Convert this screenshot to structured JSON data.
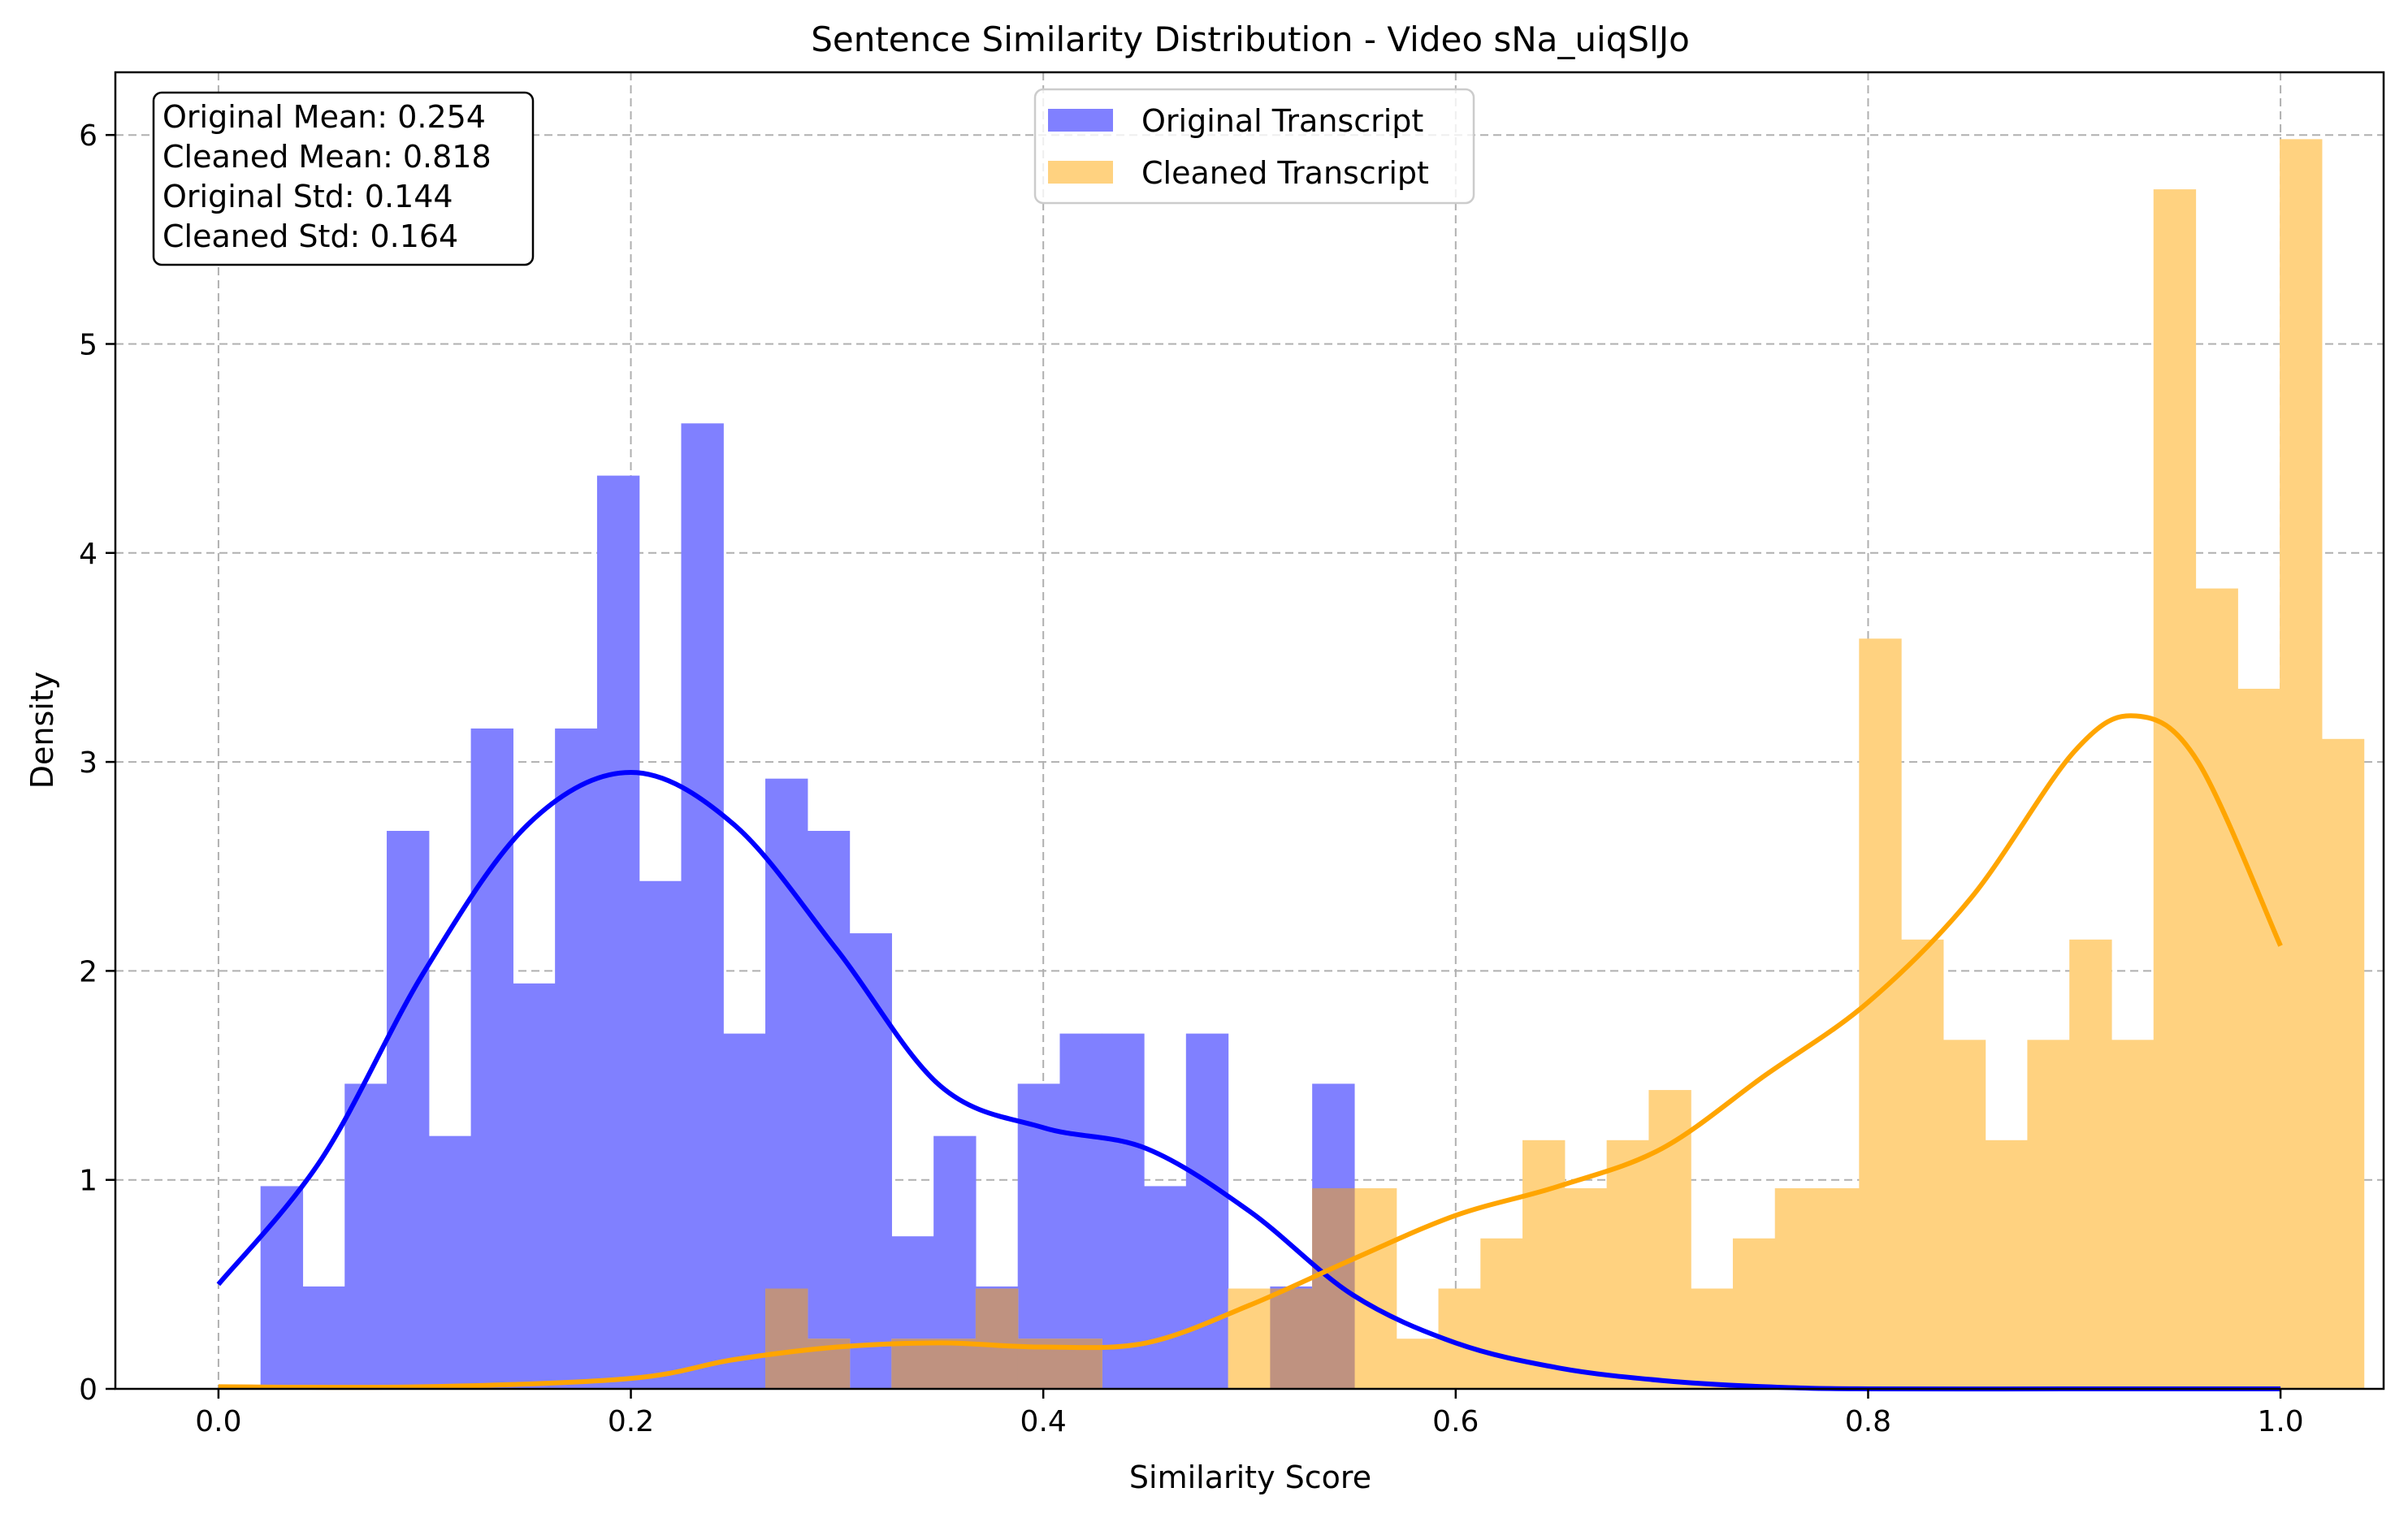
{
  "chart_data": {
    "type": "histogram",
    "title": "Sentence Similarity Distribution - Video sNa_uiqSlJo",
    "xlabel": "Similarity Score",
    "ylabel": "Density",
    "xlim": [
      -0.05,
      1.05
    ],
    "ylim": [
      0,
      6.3
    ],
    "xticks": [
      0.0,
      0.2,
      0.4,
      0.6,
      0.8,
      1.0
    ],
    "xtick_labels": [
      "0.0",
      "0.2",
      "0.4",
      "0.6",
      "0.8",
      "1.0"
    ],
    "yticks": [
      0,
      1,
      2,
      3,
      4,
      5,
      6
    ],
    "ytick_labels": [
      "0",
      "1",
      "2",
      "3",
      "4",
      "5",
      "6"
    ],
    "grid": true,
    "legend_position": "top-center",
    "bins": {
      "start": 0.0,
      "width": 0.0204,
      "original": [
        0,
        0.97,
        0.49,
        1.46,
        2.67,
        1.21,
        3.16,
        1.94,
        3.16,
        4.37,
        2.43,
        4.62,
        1.7,
        2.92,
        2.67,
        2.18,
        0.73,
        1.21,
        0.49,
        1.46,
        1.7,
        1.7,
        0.97,
        1.7,
        0,
        0.49,
        1.46,
        0,
        0,
        0,
        0,
        0,
        0,
        0,
        0,
        0,
        0,
        0,
        0,
        0,
        0,
        0,
        0,
        0,
        0,
        0,
        0,
        0,
        0,
        0
      ],
      "cleaned": [
        0,
        0,
        0,
        0,
        0,
        0,
        0,
        0,
        0,
        0,
        0,
        0,
        0,
        0.48,
        0.24,
        0,
        0.24,
        0.24,
        0.48,
        0.24,
        0.24,
        0,
        0,
        0,
        0.48,
        0.48,
        0.96,
        0.96,
        0.24,
        0.48,
        0.72,
        1.19,
        0.96,
        1.19,
        1.43,
        0.48,
        0.72,
        0.96,
        0.96,
        3.59,
        2.15,
        1.67,
        1.19,
        1.67,
        2.15,
        1.67,
        5.74,
        3.83,
        3.35,
        5.98,
        3.11
      ]
    },
    "series": [
      {
        "name": "Original Transcript",
        "color": "#0000ff",
        "bar_color": "#8080ff",
        "mean_text": "Original Mean: 0.254",
        "std_text": "Original Std: 0.144",
        "kde": {
          "x": [
            0.0,
            0.05,
            0.1,
            0.15,
            0.2,
            0.25,
            0.3,
            0.35,
            0.4,
            0.45,
            0.5,
            0.55,
            0.6,
            0.65,
            0.7,
            0.75,
            0.8,
            0.9,
            1.0
          ],
          "y": [
            0.5,
            1.1,
            2.0,
            2.7,
            2.95,
            2.7,
            2.1,
            1.45,
            1.25,
            1.15,
            0.85,
            0.45,
            0.22,
            0.1,
            0.04,
            0.01,
            0.0,
            0.0,
            0.0
          ]
        }
      },
      {
        "name": "Cleaned Transcript",
        "color": "#ffa500",
        "bar_color": "#ffd280",
        "mean_text": "Cleaned Mean: 0.818",
        "std_text": "Cleaned Std: 0.164",
        "kde": {
          "x": [
            0.0,
            0.1,
            0.2,
            0.25,
            0.3,
            0.35,
            0.4,
            0.45,
            0.5,
            0.55,
            0.6,
            0.65,
            0.7,
            0.75,
            0.8,
            0.85,
            0.9,
            0.93,
            0.96,
            1.0
          ],
          "y": [
            0.01,
            0.01,
            0.05,
            0.14,
            0.2,
            0.22,
            0.2,
            0.22,
            0.4,
            0.62,
            0.83,
            0.97,
            1.15,
            1.5,
            1.85,
            2.35,
            3.05,
            3.22,
            3.0,
            2.12
          ]
        }
      }
    ],
    "overlap_color": "#bf9280",
    "stats_box_lines": [
      "Original Mean: 0.254",
      "Cleaned Mean: 0.818",
      "Original Std: 0.144",
      "Cleaned Std: 0.164"
    ]
  }
}
